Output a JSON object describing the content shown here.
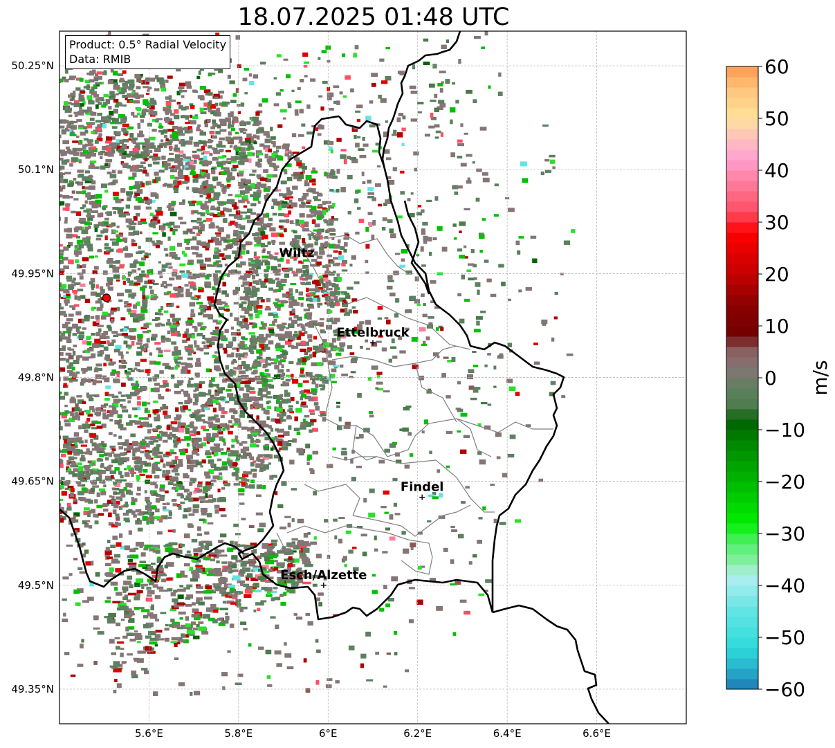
{
  "title": "18.07.2025 01:48 UTC",
  "info_box": {
    "product": "Product: 0.5° Radial Velocity",
    "data": "Data: RMIB"
  },
  "axes": {
    "lon_ticks": [
      "5.6°E",
      "5.8°E",
      "6°E",
      "6.2°E",
      "6.4°E",
      "6.6°E"
    ],
    "lat_ticks": [
      "50.25°N",
      "50.1°N",
      "49.95°N",
      "49.8°N",
      "49.65°N",
      "49.5°N",
      "49.35°N"
    ],
    "lon_values": [
      5.6,
      5.8,
      6.0,
      6.2,
      6.4,
      6.6
    ],
    "lat_values": [
      50.25,
      50.1,
      49.95,
      49.8,
      49.65,
      49.5,
      49.35
    ],
    "lon_range": [
      5.4,
      6.8
    ],
    "lat_range": [
      49.3,
      50.3
    ],
    "grid": true
  },
  "places": [
    {
      "name": "Wiltz",
      "lon": 5.93,
      "lat": 49.965,
      "marker": false
    },
    {
      "name": "Ettelbruck",
      "lon": 6.1,
      "lat": 49.85,
      "marker": true
    },
    {
      "name": "Findel",
      "lon": 6.21,
      "lat": 49.627,
      "marker": true
    },
    {
      "name": "Esch/Alzette",
      "lon": 5.99,
      "lat": 49.5,
      "marker": true
    }
  ],
  "radar_site": {
    "lon": 5.505,
    "lat": 49.915,
    "color": "#ff0000"
  },
  "colorbar": {
    "label": "m/s",
    "min": -60,
    "max": 60,
    "ticks": [
      "60",
      "50",
      "40",
      "30",
      "20",
      "10",
      "0",
      "−10",
      "−20",
      "−30",
      "−40",
      "−50",
      "−60"
    ],
    "tick_values": [
      60,
      50,
      40,
      30,
      20,
      10,
      0,
      -10,
      -20,
      -30,
      -40,
      -50,
      -60
    ],
    "stops": [
      {
        "v": -60,
        "color": "#1f77b4"
      },
      {
        "v": -56,
        "color": "#27b2cc"
      },
      {
        "v": -52,
        "color": "#2ddbdb"
      },
      {
        "v": -45,
        "color": "#63e4e4"
      },
      {
        "v": -38,
        "color": "#b4eef0"
      },
      {
        "v": -36,
        "color": "#8cf0a8"
      },
      {
        "v": -32,
        "color": "#52f06c"
      },
      {
        "v": -28,
        "color": "#00ee00"
      },
      {
        "v": -20,
        "color": "#00b800"
      },
      {
        "v": -13,
        "color": "#008a00"
      },
      {
        "v": -8,
        "color": "#005f00"
      },
      {
        "v": -6,
        "color": "#4b7a4b"
      },
      {
        "v": -2,
        "color": "#5f8060"
      },
      {
        "v": 2,
        "color": "#857575"
      },
      {
        "v": 6,
        "color": "#8a5a5a"
      },
      {
        "v": 8,
        "color": "#700000"
      },
      {
        "v": 14,
        "color": "#8b0000"
      },
      {
        "v": 20,
        "color": "#c40000"
      },
      {
        "v": 28,
        "color": "#ff0000"
      },
      {
        "v": 32,
        "color": "#ff4d64"
      },
      {
        "v": 38,
        "color": "#ff7fa0"
      },
      {
        "v": 42,
        "color": "#ff9fd0"
      },
      {
        "v": 46,
        "color": "#ffbfbf"
      },
      {
        "v": 50,
        "color": "#ffe29a"
      },
      {
        "v": 55,
        "color": "#ffc880"
      },
      {
        "v": 60,
        "color": "#ff9a50"
      }
    ]
  },
  "colors": {
    "border": "#000000",
    "canton": "#808080",
    "grid": "#b0b0b0",
    "noise_main": "#857575",
    "noise_green": "#5c8060"
  }
}
